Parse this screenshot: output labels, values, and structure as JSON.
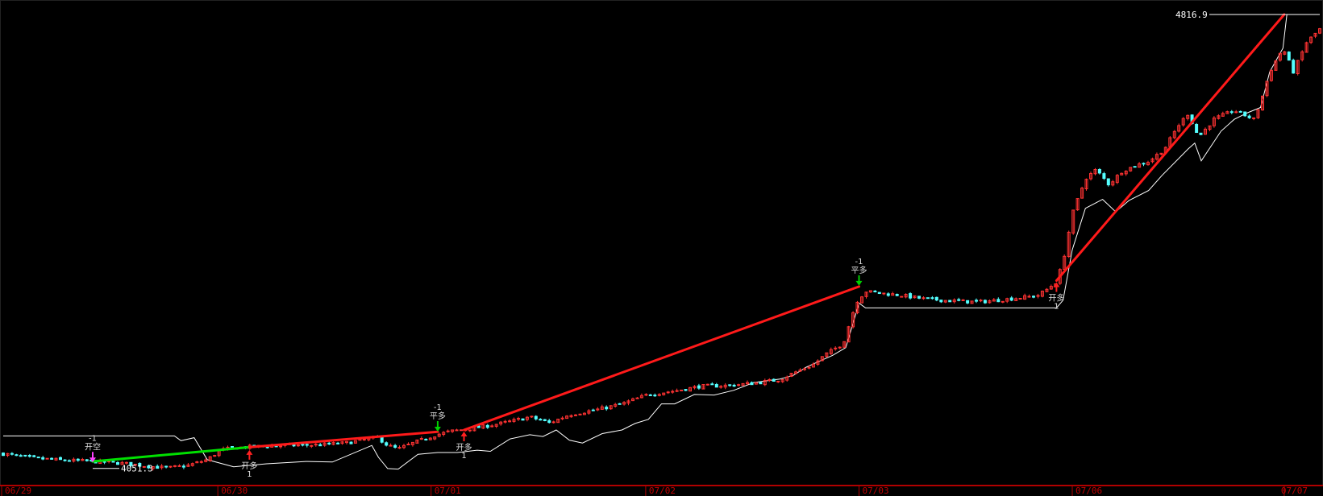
{
  "colors": {
    "background": "#000000",
    "up_candle": "#ff3232",
    "down_candle": "#54ffff",
    "price_line": "#ffffff",
    "trend_long": "#ff1a1a",
    "trend_short": "#00e000",
    "axis": "#b00000",
    "axis_text": "#c00000",
    "signal_buy": "#ff2020",
    "signal_sell": "#00d000",
    "signal_short": "#ff40ff"
  },
  "axis": {
    "dates": [
      "06/29",
      "06/30",
      "07/01",
      "07/02",
      "07/03",
      "07/06",
      "07/07"
    ]
  },
  "labels": {
    "max_price": "4816.9",
    "min_price": "4051.3"
  },
  "signals": [
    {
      "kind": "open-short",
      "qty": "-1",
      "text": "开空",
      "direction": "down",
      "color_key": "signal_short",
      "value": 4060
    },
    {
      "kind": "open-long",
      "qty": "1",
      "text": "开多",
      "direction": "up",
      "color_key": "signal_buy",
      "value": 4085
    },
    {
      "kind": "close-long",
      "qty": "-1",
      "text": "平多",
      "direction": "down",
      "color_key": "signal_sell",
      "value": 4112
    },
    {
      "kind": "open-long",
      "qty": "1",
      "text": "开多",
      "direction": "up",
      "color_key": "signal_buy",
      "value": 4116
    },
    {
      "kind": "close-long",
      "qty": "-1",
      "text": "平多",
      "direction": "down",
      "color_key": "signal_sell",
      "value": 4358
    },
    {
      "kind": "open-long",
      "qty": "1",
      "text": "开多",
      "direction": "up",
      "color_key": "signal_buy",
      "value": 4368
    }
  ],
  "trades": [
    {
      "kind": "short",
      "entry": 4063,
      "exit": 4087,
      "color_key": "trend_short"
    },
    {
      "kind": "long",
      "entry": 4087,
      "exit": 4113,
      "color_key": "trend_long"
    },
    {
      "kind": "long",
      "entry": 4116,
      "exit": 4358,
      "color_key": "trend_long"
    },
    {
      "kind": "long",
      "entry": 4368,
      "exit": 4816.9,
      "color_key": "trend_long"
    }
  ],
  "chart_data": {
    "type": "candlestick",
    "title": "",
    "ylim": [
      4040,
      4825
    ],
    "max_label": "4816.9",
    "min_label": "4051.3",
    "sessions": [
      "06/29",
      "06/30",
      "07/01",
      "07/02",
      "07/03",
      "07/06",
      "07/07"
    ],
    "price_path": [
      [
        0,
        4076
      ],
      [
        0.02,
        4069
      ],
      [
        0.045,
        4065
      ],
      [
        0.07,
        4063
      ],
      [
        0.09,
        4060
      ],
      [
        0.11,
        4055
      ],
      [
        0.125,
        4052
      ],
      [
        0.14,
        4056
      ],
      [
        0.155,
        4066
      ],
      [
        0.165,
        4082
      ],
      [
        0.175,
        4086
      ],
      [
        0.2,
        4089
      ],
      [
        0.22,
        4090
      ],
      [
        0.24,
        4091
      ],
      [
        0.26,
        4094
      ],
      [
        0.275,
        4100
      ],
      [
        0.285,
        4103
      ],
      [
        0.292,
        4090
      ],
      [
        0.3,
        4084
      ],
      [
        0.31,
        4093
      ],
      [
        0.32,
        4101
      ],
      [
        0.329,
        4108
      ],
      [
        0.34,
        4114
      ],
      [
        0.36,
        4120
      ],
      [
        0.38,
        4128
      ],
      [
        0.4,
        4138
      ],
      [
        0.415,
        4128
      ],
      [
        0.43,
        4142
      ],
      [
        0.45,
        4150
      ],
      [
        0.47,
        4160
      ],
      [
        0.49,
        4176
      ],
      [
        0.51,
        4182
      ],
      [
        0.53,
        4190
      ],
      [
        0.55,
        4191
      ],
      [
        0.57,
        4195
      ],
      [
        0.59,
        4201
      ],
      [
        0.6,
        4212
      ],
      [
        0.615,
        4226
      ],
      [
        0.625,
        4244
      ],
      [
        0.638,
        4262
      ],
      [
        0.648,
        4332
      ],
      [
        0.655,
        4350
      ],
      [
        0.665,
        4347
      ],
      [
        0.68,
        4344
      ],
      [
        0.7,
        4337
      ],
      [
        0.72,
        4334
      ],
      [
        0.74,
        4332
      ],
      [
        0.76,
        4336
      ],
      [
        0.775,
        4340
      ],
      [
        0.785,
        4342
      ],
      [
        0.792,
        4352
      ],
      [
        0.8,
        4366
      ],
      [
        0.805,
        4400
      ],
      [
        0.812,
        4480
      ],
      [
        0.822,
        4540
      ],
      [
        0.83,
        4555
      ],
      [
        0.84,
        4530
      ],
      [
        0.85,
        4553
      ],
      [
        0.86,
        4562
      ],
      [
        0.87,
        4569
      ],
      [
        0.882,
        4590
      ],
      [
        0.892,
        4628
      ],
      [
        0.9,
        4650
      ],
      [
        0.908,
        4610
      ],
      [
        0.92,
        4641
      ],
      [
        0.935,
        4655
      ],
      [
        0.95,
        4640
      ],
      [
        0.955,
        4668
      ],
      [
        0.962,
        4720
      ],
      [
        0.972,
        4760
      ],
      [
        0.98,
        4720
      ],
      [
        0.99,
        4770
      ],
      [
        1.0,
        4792
      ]
    ],
    "envelope_path": [
      [
        0,
        4106
      ],
      [
        0.13,
        4106
      ],
      [
        0.135,
        4098
      ],
      [
        0.145,
        4103
      ],
      [
        0.155,
        4066
      ],
      [
        0.175,
        4054
      ],
      [
        0.2,
        4059
      ],
      [
        0.23,
        4063
      ],
      [
        0.25,
        4062
      ],
      [
        0.28,
        4090
      ],
      [
        0.285,
        4070
      ],
      [
        0.292,
        4051
      ],
      [
        0.3,
        4050
      ],
      [
        0.315,
        4075
      ],
      [
        0.33,
        4078
      ],
      [
        0.345,
        4078
      ],
      [
        0.36,
        4082
      ],
      [
        0.37,
        4080
      ],
      [
        0.385,
        4101
      ],
      [
        0.4,
        4108
      ],
      [
        0.41,
        4105
      ],
      [
        0.42,
        4116
      ],
      [
        0.43,
        4099
      ],
      [
        0.44,
        4094
      ],
      [
        0.455,
        4110
      ],
      [
        0.47,
        4116
      ],
      [
        0.48,
        4127
      ],
      [
        0.49,
        4134
      ],
      [
        0.5,
        4160
      ],
      [
        0.51,
        4160
      ],
      [
        0.525,
        4176
      ],
      [
        0.54,
        4175
      ],
      [
        0.555,
        4183
      ],
      [
        0.57,
        4196
      ],
      [
        0.59,
        4202
      ],
      [
        0.6,
        4208
      ],
      [
        0.61,
        4222
      ],
      [
        0.62,
        4232
      ],
      [
        0.63,
        4242
      ],
      [
        0.64,
        4255
      ],
      [
        0.65,
        4330
      ],
      [
        0.655,
        4322
      ],
      [
        0.66,
        4322
      ],
      [
        0.8,
        4322
      ],
      [
        0.805,
        4335
      ],
      [
        0.812,
        4420
      ],
      [
        0.822,
        4490
      ],
      [
        0.835,
        4505
      ],
      [
        0.845,
        4484
      ],
      [
        0.855,
        4503
      ],
      [
        0.87,
        4520
      ],
      [
        0.88,
        4545
      ],
      [
        0.9,
        4590
      ],
      [
        0.905,
        4600
      ],
      [
        0.91,
        4570
      ],
      [
        0.925,
        4620
      ],
      [
        0.935,
        4640
      ],
      [
        0.945,
        4651
      ],
      [
        0.955,
        4660
      ],
      [
        0.962,
        4720
      ],
      [
        0.972,
        4760
      ],
      [
        0.975,
        4816.9
      ],
      [
        1.0,
        4816.9
      ]
    ]
  }
}
